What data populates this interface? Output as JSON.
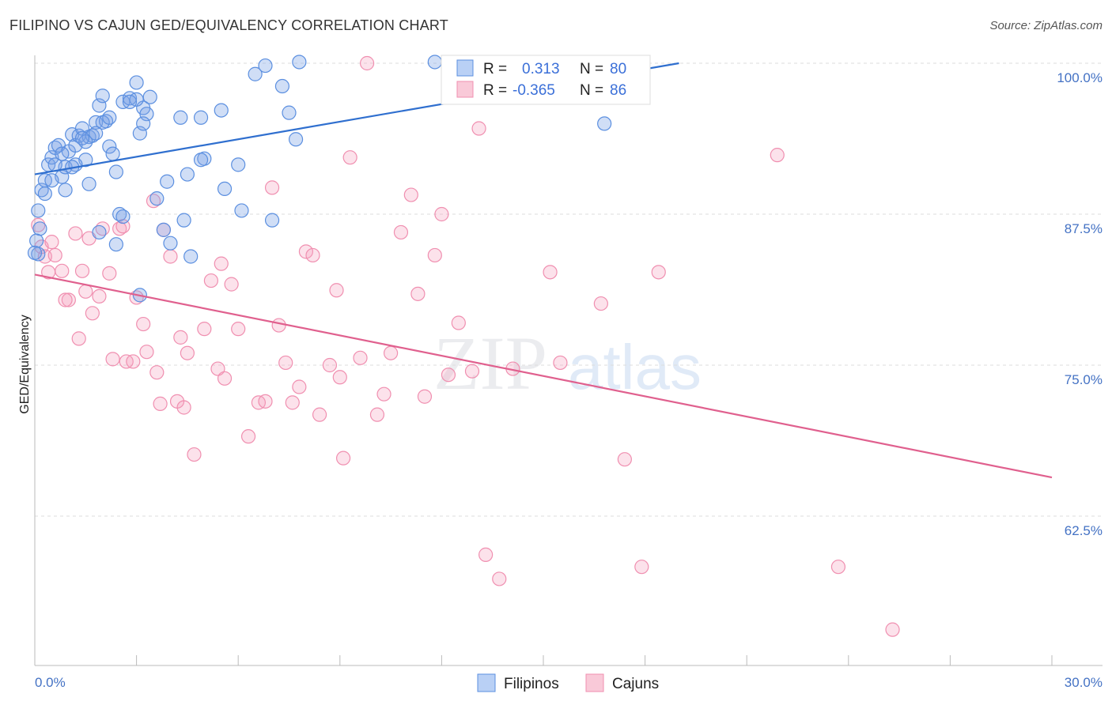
{
  "header": {
    "title": "FILIPINO VS CAJUN GED/EQUIVALENCY CORRELATION CHART",
    "source": "Source: ZipAtlas.com"
  },
  "watermark": {
    "part1": "ZIP",
    "part2": "atlas"
  },
  "colors": {
    "blue": "#5b8fe0",
    "blue_line": "#2f6fcf",
    "pink": "#f08fb0",
    "pink_line": "#e0608e",
    "grid": "#dddddd",
    "tick": "#4472c4"
  },
  "legend": {
    "rows": [
      {
        "r_label": "R =",
        "r_value": "0.313",
        "n_label": "N =",
        "n_value": "80"
      },
      {
        "r_label": "R =",
        "r_value": "-0.365",
        "n_label": "N =",
        "n_value": "86"
      }
    ]
  },
  "chart_data": {
    "type": "scatter",
    "title": "FILIPINO VS CAJUN GED/EQUIVALENCY CORRELATION CHART",
    "xlabel": "",
    "ylabel": "GED/Equivalency",
    "xlim": [
      0,
      30
    ],
    "ylim": [
      50,
      101
    ],
    "x_tick_labels": [
      "0.0%",
      "30.0%"
    ],
    "y_ticks": [
      100,
      87.5,
      75,
      62.5
    ],
    "y_tick_labels": [
      "100.0%",
      "87.5%",
      "75.0%",
      "62.5%"
    ],
    "legend": [
      "Filipinos",
      "Cajuns"
    ],
    "series": [
      {
        "name": "Filipinos",
        "r": 0.313,
        "n": 80,
        "trend": {
          "x": [
            0,
            19
          ],
          "y": [
            90.8,
            100.0
          ]
        },
        "points": [
          [
            0.1,
            84.2
          ],
          [
            0.2,
            89.5
          ],
          [
            0.3,
            90.3
          ],
          [
            0.4,
            91.6
          ],
          [
            0.5,
            92.2
          ],
          [
            0.6,
            93.0
          ],
          [
            0.7,
            93.2
          ],
          [
            0.8,
            90.6
          ],
          [
            0.9,
            91.4
          ],
          [
            1.0,
            92.7
          ],
          [
            1.1,
            94.1
          ],
          [
            1.2,
            93.2
          ],
          [
            1.3,
            94.0
          ],
          [
            1.4,
            94.6
          ],
          [
            1.5,
            92.0
          ],
          [
            1.6,
            93.9
          ],
          [
            1.7,
            94.0
          ],
          [
            1.8,
            95.1
          ],
          [
            1.9,
            96.5
          ],
          [
            2.0,
            97.3
          ],
          [
            2.1,
            95.2
          ],
          [
            2.2,
            93.1
          ],
          [
            2.3,
            92.5
          ],
          [
            2.4,
            91.0
          ],
          [
            2.6,
            96.8
          ],
          [
            2.8,
            97.1
          ],
          [
            3.0,
            98.4
          ],
          [
            3.1,
            94.2
          ],
          [
            3.2,
            96.3
          ],
          [
            3.3,
            95.8
          ],
          [
            3.6,
            88.8
          ],
          [
            3.8,
            86.2
          ],
          [
            3.9,
            90.2
          ],
          [
            4.0,
            85.1
          ],
          [
            4.4,
            87.0
          ],
          [
            4.5,
            90.8
          ],
          [
            4.6,
            84.0
          ],
          [
            4.3,
            95.5
          ],
          [
            4.9,
            95.5
          ],
          [
            5.0,
            92.1
          ],
          [
            5.5,
            96.1
          ],
          [
            5.6,
            89.6
          ],
          [
            6.0,
            91.6
          ],
          [
            6.1,
            87.8
          ],
          [
            6.5,
            99.1
          ],
          [
            6.8,
            99.8
          ],
          [
            7.0,
            87.0
          ],
          [
            7.3,
            98.1
          ],
          [
            7.5,
            95.9
          ],
          [
            7.7,
            93.7
          ],
          [
            7.8,
            100.1
          ],
          [
            11.8,
            100.1
          ],
          [
            16.8,
            95.0
          ],
          [
            3.1,
            80.8
          ],
          [
            1.9,
            86.0
          ],
          [
            2.4,
            85.0
          ],
          [
            2.5,
            87.5
          ],
          [
            2.6,
            87.3
          ],
          [
            1.6,
            90.0
          ],
          [
            0.5,
            90.3
          ],
          [
            0.1,
            87.8
          ],
          [
            0.15,
            86.3
          ],
          [
            0.05,
            85.3
          ],
          [
            0.0,
            84.3
          ],
          [
            0.3,
            89.2
          ],
          [
            0.9,
            89.5
          ],
          [
            1.2,
            91.6
          ],
          [
            1.5,
            93.5
          ],
          [
            2.0,
            95.1
          ],
          [
            2.2,
            95.5
          ],
          [
            3.0,
            97.0
          ],
          [
            3.2,
            95.0
          ],
          [
            4.9,
            92.0
          ],
          [
            0.8,
            92.5
          ],
          [
            1.4,
            93.8
          ],
          [
            3.4,
            97.2
          ],
          [
            2.8,
            96.8
          ],
          [
            1.1,
            91.4
          ],
          [
            0.6,
            91.6
          ],
          [
            1.8,
            94.2
          ]
        ]
      },
      {
        "name": "Cajuns",
        "r": -0.365,
        "n": 86,
        "trend": {
          "x": [
            0,
            30
          ],
          "y": [
            82.5,
            65.7
          ]
        },
        "points": [
          [
            0.1,
            86.6
          ],
          [
            0.2,
            84.8
          ],
          [
            0.3,
            84.0
          ],
          [
            0.4,
            82.7
          ],
          [
            0.5,
            85.2
          ],
          [
            0.6,
            84.1
          ],
          [
            0.8,
            82.8
          ],
          [
            1.0,
            80.4
          ],
          [
            1.2,
            85.9
          ],
          [
            1.3,
            77.2
          ],
          [
            1.5,
            81.1
          ],
          [
            1.6,
            85.5
          ],
          [
            1.7,
            79.3
          ],
          [
            1.9,
            80.7
          ],
          [
            2.0,
            86.3
          ],
          [
            2.2,
            82.6
          ],
          [
            2.3,
            75.5
          ],
          [
            2.5,
            86.3
          ],
          [
            2.7,
            75.3
          ],
          [
            2.9,
            75.3
          ],
          [
            3.0,
            80.6
          ],
          [
            3.2,
            78.4
          ],
          [
            3.3,
            76.1
          ],
          [
            3.5,
            88.6
          ],
          [
            3.6,
            74.4
          ],
          [
            3.8,
            86.2
          ],
          [
            4.0,
            84.0
          ],
          [
            4.2,
            72.0
          ],
          [
            4.3,
            77.3
          ],
          [
            4.5,
            76.0
          ],
          [
            4.7,
            67.6
          ],
          [
            5.0,
            78.0
          ],
          [
            5.2,
            82.0
          ],
          [
            5.4,
            74.7
          ],
          [
            5.6,
            73.9
          ],
          [
            5.8,
            81.7
          ],
          [
            6.0,
            78.0
          ],
          [
            6.3,
            69.1
          ],
          [
            6.6,
            71.9
          ],
          [
            7.0,
            89.7
          ],
          [
            7.2,
            78.3
          ],
          [
            7.4,
            75.2
          ],
          [
            7.6,
            71.9
          ],
          [
            7.8,
            73.2
          ],
          [
            8.0,
            84.4
          ],
          [
            8.2,
            84.1
          ],
          [
            8.4,
            70.9
          ],
          [
            8.7,
            75.0
          ],
          [
            8.9,
            81.2
          ],
          [
            9.1,
            67.3
          ],
          [
            9.3,
            92.2
          ],
          [
            9.6,
            75.6
          ],
          [
            9.8,
            100.0
          ],
          [
            10.1,
            70.9
          ],
          [
            10.3,
            72.6
          ],
          [
            10.5,
            76.0
          ],
          [
            10.8,
            86.0
          ],
          [
            11.1,
            89.1
          ],
          [
            11.3,
            80.9
          ],
          [
            11.5,
            72.4
          ],
          [
            11.8,
            84.1
          ],
          [
            12.2,
            74.2
          ],
          [
            12.5,
            78.5
          ],
          [
            12.9,
            74.5
          ],
          [
            13.1,
            94.6
          ],
          [
            13.3,
            59.3
          ],
          [
            13.7,
            57.3
          ],
          [
            14.1,
            74.7
          ],
          [
            15.2,
            82.7
          ],
          [
            15.5,
            75.2
          ],
          [
            16.7,
            80.1
          ],
          [
            17.4,
            67.2
          ],
          [
            17.9,
            58.3
          ],
          [
            18.4,
            82.7
          ],
          [
            21.9,
            92.4
          ],
          [
            23.7,
            58.3
          ],
          [
            25.3,
            53.1
          ],
          [
            3.7,
            71.8
          ],
          [
            4.4,
            71.5
          ],
          [
            5.5,
            83.4
          ],
          [
            6.8,
            72.0
          ],
          [
            9.0,
            74.0
          ],
          [
            12.0,
            87.5
          ],
          [
            1.4,
            82.8
          ],
          [
            0.9,
            80.4
          ],
          [
            2.6,
            86.5
          ]
        ]
      }
    ]
  }
}
